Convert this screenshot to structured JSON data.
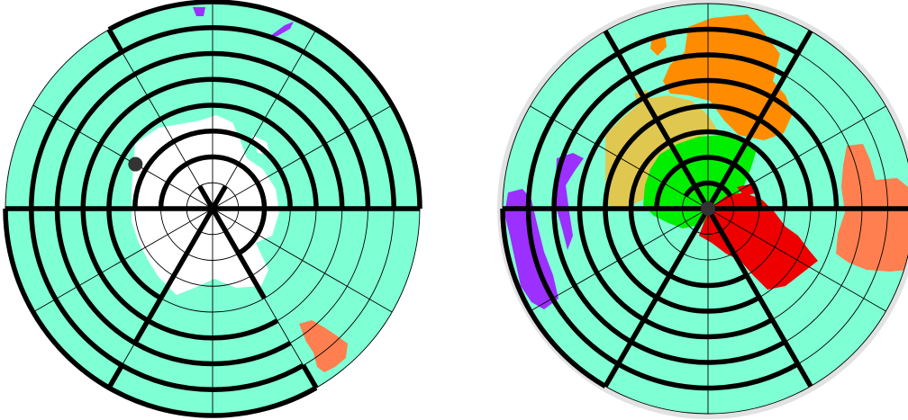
{
  "colors": {
    "ocean": "#7fffd4",
    "polar_ice": "#ffffff",
    "grid_line": "#000000",
    "rim": "#e2e2e2",
    "player_marker": "#333333",
    "region_north_america": "#ff8c00",
    "region_asia": "#00ee00",
    "region_europe": "#e0c850",
    "region_africa": "#ee0000",
    "region_south_america": "#9b30ff",
    "region_australia": "#ff7f50"
  },
  "boards": [
    {
      "name": "left-polar-board",
      "thin_rings": 8,
      "spokes": 12,
      "thick_arcs": [
        {
          "ring": 2,
          "from_deg": -180,
          "to_deg": 60
        },
        {
          "ring": 3,
          "from_deg": -180,
          "to_deg": 0
        },
        {
          "ring": 4,
          "from_deg": -180,
          "to_deg": 0
        },
        {
          "ring": 4,
          "from_deg": 180,
          "to_deg": 120
        },
        {
          "ring": 5,
          "from_deg": -180,
          "to_deg": 0
        },
        {
          "ring": 5,
          "from_deg": 180,
          "to_deg": 60
        },
        {
          "ring": 6,
          "from_deg": -180,
          "to_deg": 0
        },
        {
          "ring": 6,
          "from_deg": 180,
          "to_deg": 60
        },
        {
          "ring": 7,
          "from_deg": -180,
          "to_deg": 0
        },
        {
          "ring": 7,
          "from_deg": 180,
          "to_deg": 60
        },
        {
          "ring": 8,
          "from_deg": -120,
          "to_deg": 0
        },
        {
          "ring": 8,
          "from_deg": 180,
          "to_deg": 60
        }
      ],
      "thick_spokes": [
        {
          "deg": 0,
          "from": 0,
          "to": 8
        },
        {
          "deg": 180,
          "from": 0,
          "to": 8
        },
        {
          "deg": 60,
          "from": 0,
          "to": 4
        },
        {
          "deg": 120,
          "from": 0,
          "to": 6
        },
        {
          "deg": -60,
          "from": 0,
          "to": 1
        },
        {
          "deg": -120,
          "from": 0,
          "to": 1
        },
        {
          "deg": -120,
          "from": 7,
          "to": 8
        },
        {
          "deg": 60,
          "from": 7,
          "to": 8
        },
        {
          "deg": 120,
          "from": 7,
          "to": 8
        }
      ],
      "markers": [
        {
          "r": 0.43,
          "deg": -150
        }
      ]
    },
    {
      "name": "right-polar-board",
      "thin_rings": 8,
      "spokes": 12,
      "thick_arcs": [
        {
          "ring": 1,
          "from_deg": -150,
          "to_deg": -30
        },
        {
          "ring": 2,
          "from_deg": -180,
          "to_deg": 0
        },
        {
          "ring": 3,
          "from_deg": -180,
          "to_deg": 0
        },
        {
          "ring": 3,
          "from_deg": 180,
          "to_deg": 60
        },
        {
          "ring": 4,
          "from_deg": -180,
          "to_deg": 0
        },
        {
          "ring": 4,
          "from_deg": 180,
          "to_deg": 60
        },
        {
          "ring": 5,
          "from_deg": -180,
          "to_deg": 0
        },
        {
          "ring": 5,
          "from_deg": 180,
          "to_deg": 60
        },
        {
          "ring": 6,
          "from_deg": -180,
          "to_deg": -60
        },
        {
          "ring": 6,
          "from_deg": 180,
          "to_deg": 60
        },
        {
          "ring": 7,
          "from_deg": -180,
          "to_deg": -60
        },
        {
          "ring": 7,
          "from_deg": 180,
          "to_deg": 60
        },
        {
          "ring": 8,
          "from_deg": 180,
          "to_deg": 120
        }
      ],
      "thick_spokes": [
        {
          "deg": 0,
          "from": 0,
          "to": 8
        },
        {
          "deg": 180,
          "from": 0,
          "to": 8
        },
        {
          "deg": -60,
          "from": 0,
          "to": 8
        },
        {
          "deg": -120,
          "from": 0,
          "to": 8
        },
        {
          "deg": 60,
          "from": 0,
          "to": 8
        },
        {
          "deg": 120,
          "from": 0,
          "to": 8
        }
      ],
      "markers": [
        {
          "r": 0.0,
          "deg": 0
        }
      ]
    }
  ]
}
